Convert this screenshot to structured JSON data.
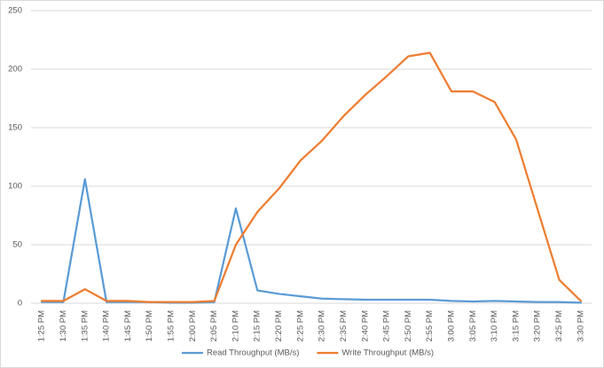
{
  "chart_data": {
    "type": "line",
    "categories": [
      "1:25 PM",
      "1:30 PM",
      "1:35 PM",
      "1:40 PM",
      "1:45 PM",
      "1:50 PM",
      "1:55 PM",
      "2:00 PM",
      "2:05 PM",
      "2:10 PM",
      "2:15 PM",
      "2:20 PM",
      "2:25 PM",
      "2:30 PM",
      "2:35 PM",
      "2:40 PM",
      "2:45 PM",
      "2:50 PM",
      "2:55 PM",
      "3:00 PM",
      "3:05 PM",
      "3:10 PM",
      "3:15 PM",
      "3:20 PM",
      "3:25 PM",
      "3:30 PM"
    ],
    "series": [
      {
        "name": "Read Throughput (MB/s)",
        "color": "#5b9bd5",
        "values": [
          1,
          1,
          106,
          1,
          1,
          1,
          0.5,
          0.5,
          1,
          81,
          11,
          8,
          6,
          4,
          3.5,
          3,
          3,
          3,
          3,
          2,
          1.5,
          2,
          1.5,
          1,
          1,
          0.5
        ]
      },
      {
        "name": "Write Throughput (MB/s)",
        "color": "#ed7d31",
        "values": [
          2,
          2,
          12,
          2,
          2,
          1,
          1,
          1,
          2,
          50,
          78,
          98,
          122,
          139,
          160,
          178,
          194,
          211,
          214,
          181,
          181,
          172,
          140,
          80,
          20,
          2
        ]
      }
    ],
    "ylim": [
      0,
      250
    ],
    "yticks": [
      0,
      50,
      100,
      150,
      200,
      250
    ],
    "grid": true,
    "legend": "bottom"
  }
}
